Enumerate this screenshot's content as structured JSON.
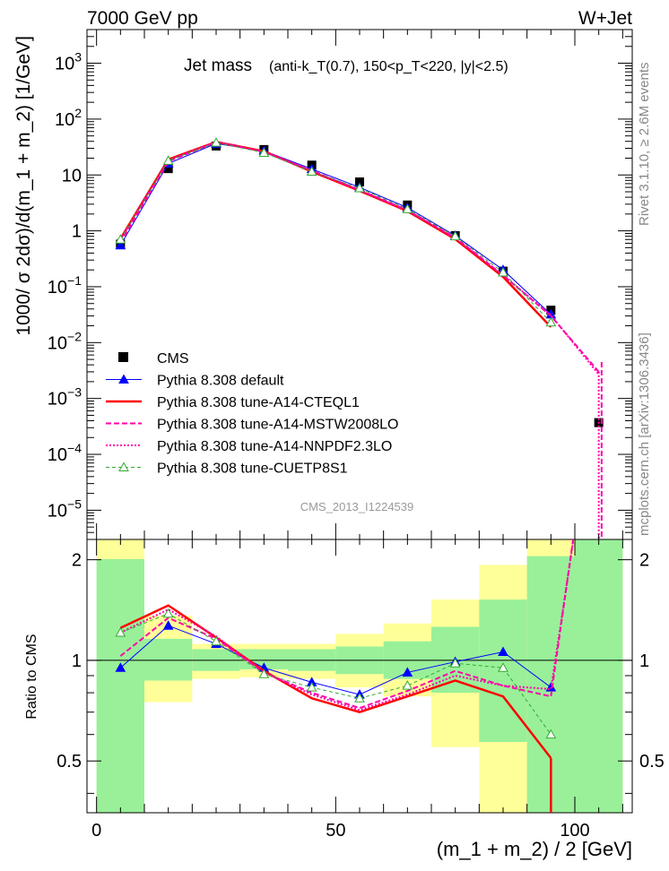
{
  "header": {
    "left": "7000 GeV pp",
    "right": "W+Jet"
  },
  "side_labels": {
    "rivet": "Rivet 3.1.10, ≥ 2.6M events",
    "mcplots": "mcplots.cern.ch [arXiv:1306.3436]"
  },
  "watermark": "CMS_2013_I1224539",
  "chart_data": [
    {
      "type": "line",
      "panel": "main",
      "title_main": "Jet mass",
      "title_detail": "(anti-k_T(0.7), 150<p_T<220, |y|<2.5)",
      "ylabel": "1000/ σ 2dσ)/d(m_1 + m_2) [1/GeV]",
      "xlabel": "(m_1 + m_2) / 2 [GeV]",
      "y_scale": "log",
      "xlim": [
        -2,
        112
      ],
      "ylim": [
        3e-06,
        4000
      ],
      "y_ticks": [
        {
          "v": 1e-05,
          "t": "10",
          "e": "−5"
        },
        {
          "v": 0.0001,
          "t": "10",
          "e": "−4"
        },
        {
          "v": 0.001,
          "t": "10",
          "e": "−3"
        },
        {
          "v": 0.01,
          "t": "10",
          "e": "−2"
        },
        {
          "v": 0.1,
          "t": "10",
          "e": "−1"
        },
        {
          "v": 1,
          "t": "1",
          "e": ""
        },
        {
          "v": 10,
          "t": "10",
          "e": ""
        },
        {
          "v": 100,
          "t": "10",
          "e": "2"
        },
        {
          "v": 1000,
          "t": "10",
          "e": "3"
        }
      ],
      "x": [
        5,
        15,
        25,
        35,
        45,
        55,
        65,
        75,
        85,
        95,
        105
      ],
      "series": [
        {
          "name": "CMS",
          "color": "#000000",
          "style": "data",
          "values": [
            0.58,
            13.0,
            33.0,
            28.5,
            15.0,
            7.5,
            2.9,
            0.82,
            0.19,
            0.038,
            0.00037
          ]
        },
        {
          "name": "Pythia 8.308 default",
          "color": "#0000ff",
          "style": "solid-tri",
          "width": 1,
          "values": [
            0.55,
            16.0,
            36.5,
            27.0,
            12.8,
            6.0,
            2.6,
            0.82,
            0.2,
            0.032,
            null
          ]
        },
        {
          "name": "Pythia 8.308 tune-A14-CTEQL1",
          "color": "#ff0000",
          "style": "solid",
          "width": 2.5,
          "values": [
            0.72,
            19.0,
            39.0,
            26.5,
            11.5,
            5.2,
            2.25,
            0.71,
            0.15,
            0.019,
            null
          ]
        },
        {
          "name": "Pythia 8.308 tune-A14-MSTW2008LO",
          "color": "#ff00aa",
          "style": "dashed",
          "width": 2,
          "values": [
            0.6,
            17.5,
            38.5,
            26.0,
            12.0,
            5.4,
            2.35,
            0.76,
            0.16,
            0.03,
            0.003
          ]
        },
        {
          "name": "Pythia 8.308 tune-A14-NNPDF2.3LO",
          "color": "#ff00aa",
          "style": "dotted",
          "width": 2,
          "values": [
            0.7,
            18.5,
            39.0,
            26.0,
            11.8,
            5.3,
            2.3,
            0.74,
            0.16,
            0.031,
            0.0027
          ]
        },
        {
          "name": "Pythia 8.308 tune-CUETP8S1",
          "color": "#33aa33",
          "style": "dashed-tri",
          "width": 1,
          "values": [
            0.7,
            18.0,
            38.0,
            25.0,
            11.5,
            5.8,
            2.45,
            0.8,
            0.18,
            0.023,
            null
          ]
        }
      ]
    },
    {
      "type": "line",
      "panel": "ratio",
      "ylabel": "Ratio to CMS",
      "y_scale": "log",
      "xlim": [
        -2,
        112
      ],
      "ylim": [
        0.35,
        2.3
      ],
      "y_ticks": [
        {
          "v": 0.5,
          "t": "0.5"
        },
        {
          "v": 1,
          "t": "1"
        },
        {
          "v": 2,
          "t": "2"
        }
      ],
      "x_ticks": [
        {
          "v": 0,
          "t": "0"
        },
        {
          "v": 50,
          "t": "50"
        },
        {
          "v": 100,
          "t": "100"
        }
      ],
      "bands": [
        {
          "x0": 0,
          "x1": 10,
          "inner": [
            0.35,
            2.01
          ],
          "outer": [
            0.35,
            2.3
          ]
        },
        {
          "x0": 10,
          "x1": 20,
          "inner": [
            0.87,
            1.16
          ],
          "outer": [
            0.75,
            1.36
          ]
        },
        {
          "x0": 20,
          "x1": 30,
          "inner": [
            0.93,
            1.08
          ],
          "outer": [
            0.88,
            1.12
          ]
        },
        {
          "x0": 30,
          "x1": 40,
          "inner": [
            0.94,
            1.08
          ],
          "outer": [
            0.89,
            1.12
          ]
        },
        {
          "x0": 40,
          "x1": 50,
          "inner": [
            0.93,
            1.08
          ],
          "outer": [
            0.88,
            1.12
          ]
        },
        {
          "x0": 50,
          "x1": 60,
          "inner": [
            0.91,
            1.1
          ],
          "outer": [
            0.83,
            1.2
          ]
        },
        {
          "x0": 60,
          "x1": 70,
          "inner": [
            0.88,
            1.14
          ],
          "outer": [
            0.78,
            1.29
          ]
        },
        {
          "x0": 70,
          "x1": 80,
          "inner": [
            0.8,
            1.26
          ],
          "outer": [
            0.55,
            1.52
          ]
        },
        {
          "x0": 80,
          "x1": 90,
          "inner": [
            0.57,
            1.52
          ],
          "outer": [
            0.35,
            1.93
          ]
        },
        {
          "x0": 90,
          "x1": 100,
          "inner": [
            0.35,
            2.05
          ],
          "outer": [
            0.35,
            2.3
          ]
        },
        {
          "x0": 100,
          "x1": 110,
          "inner": [
            0.35,
            2.3
          ],
          "outer": [
            0.35,
            2.3
          ]
        }
      ],
      "series": [
        {
          "name": "Pythia 8.308 default",
          "values": [
            0.95,
            1.27,
            1.12,
            0.95,
            0.86,
            0.79,
            0.92,
            0.99,
            1.06,
            0.83,
            null
          ]
        },
        {
          "name": "Pythia 8.308 tune-A14-CTEQL1",
          "values": [
            1.25,
            1.46,
            1.17,
            0.93,
            0.77,
            0.7,
            0.78,
            0.87,
            0.78,
            0.51,
            null
          ]
        },
        {
          "name": "Pythia 8.308 tune-A14-MSTW2008LO",
          "values": [
            1.03,
            1.34,
            1.16,
            0.92,
            0.8,
            0.72,
            0.81,
            0.93,
            0.84,
            0.78,
            8.0
          ]
        },
        {
          "name": "Pythia 8.308 tune-A14-NNPDF2.3LO",
          "values": [
            1.21,
            1.42,
            1.18,
            0.92,
            0.79,
            0.71,
            0.79,
            0.9,
            0.84,
            0.82,
            7.3
          ]
        },
        {
          "name": "Pythia 8.308 tune-CUETP8S1",
          "values": [
            1.21,
            1.38,
            1.14,
            0.91,
            0.83,
            0.77,
            0.84,
            0.98,
            0.95,
            0.6,
            null
          ]
        }
      ]
    }
  ]
}
